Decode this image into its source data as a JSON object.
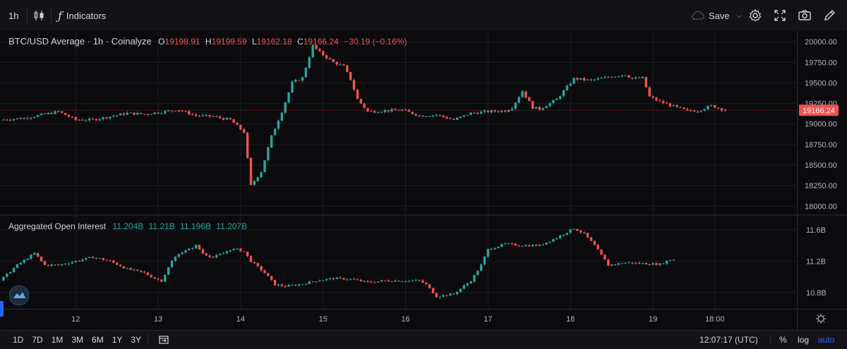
{
  "toolbar": {
    "interval": "1h",
    "indicators_label": "Indicators",
    "save_label": "Save"
  },
  "legend_main": {
    "symbol": "BTC/USD Average · 1h · Coinalyze",
    "o_label": "O",
    "o": "19198.91",
    "h_label": "H",
    "h": "19199.59",
    "l_label": "L",
    "l": "19162.18",
    "c_label": "C",
    "c": "19166.24",
    "change": "−30.19 (−0.16%)"
  },
  "legend_oi": {
    "title": "Aggregated Open Interest",
    "v1": "11.204B",
    "v2": "11.21B",
    "v3": "11.196B",
    "v4": "11.207B"
  },
  "bottom": {
    "ranges": [
      "1D",
      "7D",
      "1M",
      "3M",
      "6M",
      "1Y",
      "3Y"
    ],
    "time": "12:07:17 (UTC)",
    "percent": "%",
    "log": "log",
    "auto": "auto"
  },
  "colors": {
    "up": "#26a69a",
    "down": "#ef5350",
    "bg": "#0b0b0e",
    "grid": "#1c1d22",
    "price_tag": "#ef5350"
  },
  "chart_data": [
    {
      "type": "candlestick",
      "title": "BTC/USD Average · 1h · Coinalyze",
      "ylim": [
        17900,
        20130
      ],
      "yticks": [
        "20000.00",
        "19750.00",
        "19500.00",
        "19250.00",
        "19000.00",
        "18750.00",
        "18500.00",
        "18250.00",
        "18000.00"
      ],
      "ytick_values": [
        20000,
        19750,
        19500,
        19250,
        19000,
        18750,
        18500,
        18250,
        18000
      ],
      "last_price_label": "19166.24",
      "last_price": 19166.24,
      "xticks": [
        "12",
        "13",
        "14",
        "15",
        "16",
        "17",
        "18",
        "19",
        "18:00"
      ],
      "xtick_hours": [
        24,
        48,
        72,
        96,
        120,
        144,
        168,
        192,
        210
      ],
      "hours_range": [
        3,
        223
      ],
      "anchors": [
        [
          3,
          19050
        ],
        [
          10,
          19070
        ],
        [
          20,
          19150
        ],
        [
          25,
          19050
        ],
        [
          30,
          19050
        ],
        [
          40,
          19130
        ],
        [
          45,
          19120
        ],
        [
          55,
          19170
        ],
        [
          60,
          19100
        ],
        [
          65,
          19090
        ],
        [
          70,
          19050
        ],
        [
          74,
          18900
        ],
        [
          76,
          18250
        ],
        [
          79,
          18420
        ],
        [
          82,
          18850
        ],
        [
          85,
          19150
        ],
        [
          88,
          19500
        ],
        [
          91,
          19560
        ],
        [
          94,
          19950
        ],
        [
          96,
          19870
        ],
        [
          100,
          19750
        ],
        [
          103,
          19700
        ],
        [
          105,
          19540
        ],
        [
          107,
          19300
        ],
        [
          110,
          19150
        ],
        [
          115,
          19160
        ],
        [
          120,
          19170
        ],
        [
          125,
          19100
        ],
        [
          130,
          19110
        ],
        [
          135,
          19050
        ],
        [
          140,
          19130
        ],
        [
          145,
          19150
        ],
        [
          150,
          19160
        ],
        [
          152,
          19200
        ],
        [
          155,
          19400
        ],
        [
          158,
          19200
        ],
        [
          160,
          19180
        ],
        [
          165,
          19300
        ],
        [
          170,
          19550
        ],
        [
          175,
          19530
        ],
        [
          180,
          19570
        ],
        [
          185,
          19600
        ],
        [
          187,
          19550
        ],
        [
          190,
          19560
        ],
        [
          192,
          19330
        ],
        [
          195,
          19270
        ],
        [
          200,
          19200
        ],
        [
          203,
          19160
        ],
        [
          206,
          19160
        ],
        [
          210,
          19220
        ],
        [
          213,
          19180
        ]
      ]
    },
    {
      "type": "candlestick",
      "title": "Aggregated Open Interest",
      "ylim": [
        10.6,
        11.78
      ],
      "yticks": [
        "11.6B",
        "11.2B",
        "10.8B"
      ],
      "ytick_values": [
        11.6,
        11.2,
        10.8
      ],
      "anchors": [
        [
          3,
          10.95
        ],
        [
          8,
          11.15
        ],
        [
          13,
          11.3
        ],
        [
          16,
          11.15
        ],
        [
          20,
          11.15
        ],
        [
          25,
          11.2
        ],
        [
          30,
          11.25
        ],
        [
          35,
          11.2
        ],
        [
          40,
          11.1
        ],
        [
          45,
          11.05
        ],
        [
          48,
          10.98
        ],
        [
          50,
          10.95
        ],
        [
          53,
          11.2
        ],
        [
          55,
          11.3
        ],
        [
          58,
          11.35
        ],
        [
          60,
          11.4
        ],
        [
          62,
          11.3
        ],
        [
          65,
          11.25
        ],
        [
          68,
          11.3
        ],
        [
          70,
          11.35
        ],
        [
          72,
          11.35
        ],
        [
          74,
          11.32
        ],
        [
          76,
          11.2
        ],
        [
          80,
          11.05
        ],
        [
          83,
          10.9
        ],
        [
          86,
          10.88
        ],
        [
          90,
          10.9
        ],
        [
          95,
          10.95
        ],
        [
          100,
          10.98
        ],
        [
          105,
          10.97
        ],
        [
          110,
          10.93
        ],
        [
          115,
          10.95
        ],
        [
          120,
          10.95
        ],
        [
          125,
          10.95
        ],
        [
          127,
          10.9
        ],
        [
          130,
          10.75
        ],
        [
          135,
          10.78
        ],
        [
          140,
          10.95
        ],
        [
          143,
          11.15
        ],
        [
          145,
          11.35
        ],
        [
          150,
          11.42
        ],
        [
          155,
          11.4
        ],
        [
          160,
          11.4
        ],
        [
          165,
          11.5
        ],
        [
          170,
          11.62
        ],
        [
          173,
          11.55
        ],
        [
          176,
          11.4
        ],
        [
          180,
          11.15
        ],
        [
          185,
          11.18
        ],
        [
          190,
          11.17
        ],
        [
          195,
          11.16
        ],
        [
          198,
          11.22
        ]
      ]
    }
  ]
}
